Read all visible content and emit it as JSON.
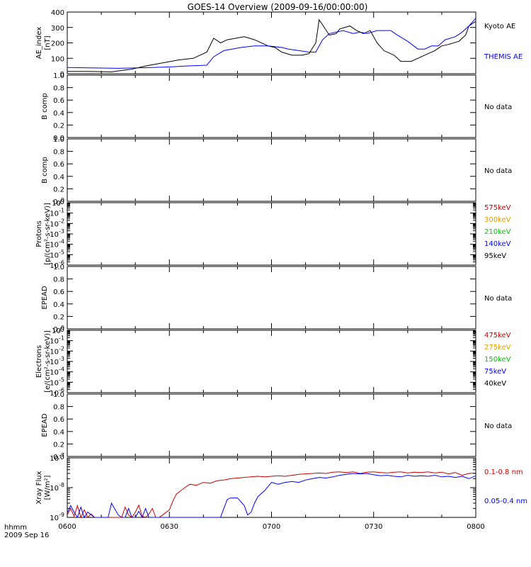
{
  "title": "GOES-14 Overview (2009-09-16/00:00:00)",
  "time_axis": {
    "tick_labels": [
      "0600",
      "0630",
      "0700",
      "0730",
      "0800"
    ],
    "tick_minutes": [
      0,
      30,
      60,
      90,
      120
    ],
    "range_minutes": [
      0,
      120
    ],
    "row1_label": "hhmm",
    "row2_label": "2009 Sep 16"
  },
  "colors": {
    "kyoto": "#000000",
    "themis": "#0000ff",
    "red": "#cc0000",
    "orange": "#e0a000",
    "green": "#00cc00",
    "blue": "#0000ff",
    "black": "#000000"
  },
  "chart_data": [
    {
      "type": "line",
      "panel": "ae",
      "ylabel": [
        "AE_index",
        "[nT]"
      ],
      "ylim": [
        0,
        400
      ],
      "yticks": [
        0,
        100,
        200,
        300,
        400
      ],
      "series": [
        {
          "name": "Kyoto AE",
          "color": "#000000",
          "x": [
            0,
            6,
            13,
            19,
            23,
            28,
            33,
            37,
            41,
            43,
            45,
            47,
            52,
            55,
            59,
            61,
            63,
            66,
            69,
            71,
            73,
            74,
            77,
            79,
            80,
            83,
            85,
            87,
            89,
            91,
            93,
            96,
            98,
            101,
            104,
            106,
            108,
            110,
            112,
            115,
            117,
            118,
            120
          ],
          "y": [
            15,
            15,
            12,
            30,
            50,
            70,
            90,
            100,
            140,
            230,
            200,
            220,
            240,
            220,
            180,
            170,
            140,
            120,
            120,
            130,
            200,
            350,
            250,
            260,
            290,
            310,
            280,
            260,
            280,
            200,
            150,
            120,
            80,
            80,
            110,
            130,
            150,
            180,
            190,
            210,
            250,
            310,
            340
          ]
        },
        {
          "name": "THEMIS AE",
          "color": "#0000ff",
          "x": [
            0,
            15,
            25,
            31,
            35,
            41,
            43,
            46,
            51,
            55,
            59,
            63,
            65,
            68,
            71,
            73,
            75,
            77,
            81,
            84,
            86,
            88,
            91,
            95,
            97,
            100,
            103,
            105,
            107,
            109,
            111,
            114,
            116,
            118,
            120
          ],
          "y": [
            40,
            35,
            40,
            45,
            50,
            55,
            110,
            150,
            170,
            180,
            180,
            170,
            160,
            150,
            140,
            140,
            220,
            260,
            280,
            260,
            270,
            260,
            280,
            280,
            250,
            210,
            160,
            160,
            180,
            180,
            220,
            240,
            270,
            310,
            360
          ]
        }
      ]
    },
    {
      "type": "line",
      "panel": "bcomp1",
      "ylabel": [
        "B comp"
      ],
      "ylim": [
        0,
        1
      ],
      "yticks": [
        0,
        0.2,
        0.4,
        0.6,
        0.8,
        1.0
      ],
      "ytick_labels": [
        "0.0",
        "0.2",
        "0.4",
        "0.6",
        "0.8",
        "1.0"
      ],
      "status": "No data",
      "series": []
    },
    {
      "type": "line",
      "panel": "bcomp2",
      "ylabel": [
        "B comp"
      ],
      "ylim": [
        0,
        1
      ],
      "yticks": [
        0,
        0.2,
        0.4,
        0.6,
        0.8,
        1.0
      ],
      "ytick_labels": [
        "0.0",
        "0.2",
        "0.4",
        "0.6",
        "0.8",
        "1.0"
      ],
      "status": "No data",
      "series": []
    },
    {
      "type": "line",
      "panel": "protons",
      "yscale": "log",
      "ylabel": [
        "Protons",
        "[p/(cm²-s-sr-keV)]"
      ],
      "ylim": [
        1e-06,
        1
      ],
      "ytick_exponents": [
        0,
        -1,
        -2,
        -3,
        -4,
        -5,
        -6
      ],
      "legend": [
        {
          "label": "575keV",
          "color": "#cc0000"
        },
        {
          "label": "300keV",
          "color": "#e0a000"
        },
        {
          "label": "210keV",
          "color": "#00cc00"
        },
        {
          "label": "140keV",
          "color": "#0000ff"
        },
        {
          "label": "95keV",
          "color": "#000000"
        }
      ],
      "series": []
    },
    {
      "type": "line",
      "panel": "epead1",
      "ylabel": [
        "EPEAD"
      ],
      "ylim": [
        0,
        1
      ],
      "yticks": [
        0,
        0.2,
        0.4,
        0.6,
        0.8,
        1.0
      ],
      "ytick_labels": [
        "0.0",
        "0.2",
        "0.4",
        "0.6",
        "0.8",
        "1.0"
      ],
      "status": "No data",
      "series": []
    },
    {
      "type": "line",
      "panel": "electrons",
      "yscale": "log",
      "ylabel": [
        "Electrons",
        "[e/(cm²-s-sr-keV)]"
      ],
      "ylim": [
        1e-06,
        1
      ],
      "ytick_exponents": [
        0,
        -1,
        -2,
        -3,
        -4,
        -5,
        -6
      ],
      "legend": [
        {
          "label": "475keV",
          "color": "#cc0000"
        },
        {
          "label": "275keV",
          "color": "#e0a000"
        },
        {
          "label": "150keV",
          "color": "#00cc00"
        },
        {
          "label": "75keV",
          "color": "#0000ff"
        },
        {
          "label": "40keV",
          "color": "#000000"
        }
      ],
      "series": []
    },
    {
      "type": "line",
      "panel": "epead2",
      "ylabel": [
        "EPEAD"
      ],
      "ylim": [
        0,
        1
      ],
      "yticks": [
        0,
        0.2,
        0.4,
        0.6,
        0.8,
        1.0
      ],
      "ytick_labels": [
        "0.0",
        "0.2",
        "0.4",
        "0.6",
        "0.8",
        "1.0"
      ],
      "status": "No data",
      "series": []
    },
    {
      "type": "line",
      "panel": "xray",
      "yscale": "log",
      "ylabel": [
        "Xray Flux",
        "[W/m²]"
      ],
      "ylim": [
        1e-09,
        1e-07
      ],
      "ytick_exponents": [
        -7,
        -8,
        -9
      ],
      "series": [
        {
          "name": "0.1-0.8 nm",
          "color": "#cc0000",
          "x": [
            0,
            1,
            2,
            3,
            4,
            5,
            6,
            7,
            8,
            10,
            11,
            13,
            14,
            16,
            17,
            18,
            19,
            20,
            21,
            22,
            23,
            24,
            25,
            26,
            27,
            28,
            30,
            31,
            32,
            34,
            36,
            38,
            40,
            42,
            44,
            46,
            48,
            50,
            52,
            54,
            56,
            58,
            60,
            62,
            64,
            66,
            68,
            70,
            72,
            74,
            76,
            78,
            80,
            82,
            84,
            86,
            88,
            90,
            92,
            94,
            96,
            98,
            100,
            102,
            104,
            106,
            108,
            110,
            112,
            114,
            116,
            118,
            120
          ],
          "y": [
            1.2e-09,
            2e-09,
            1.1e-09,
            2.5e-09,
            1e-09,
            1.8e-09,
            1e-09,
            1.3e-09,
            1e-09,
            1e-09,
            1e-09,
            1e-09,
            1e-09,
            1e-09,
            2.2e-09,
            1.2e-09,
            1e-09,
            1.5e-09,
            2.6e-09,
            1.1e-09,
            1e-09,
            1.3e-09,
            2e-09,
            1e-09,
            1e-09,
            1.2e-09,
            1.8e-09,
            3.5e-09,
            6e-09,
            9e-09,
            1.3e-08,
            1.2e-08,
            1.5e-08,
            1.4e-08,
            1.7e-08,
            1.8e-08,
            2e-08,
            2.1e-08,
            2.2e-08,
            2.3e-08,
            2.4e-08,
            2.3e-08,
            2.4e-08,
            2.5e-08,
            2.4e-08,
            2.6e-08,
            2.8e-08,
            2.9e-08,
            3e-08,
            3.1e-08,
            3e-08,
            3.3e-08,
            3.4e-08,
            3.2e-08,
            3.4e-08,
            3e-08,
            3.3e-08,
            3.4e-08,
            3.2e-08,
            3.1e-08,
            3.3e-08,
            3.4e-08,
            3.1e-08,
            3.3e-08,
            3.2e-08,
            3.4e-08,
            3.1e-08,
            3.3e-08,
            2.9e-08,
            3.2e-08,
            2.6e-08,
            3e-08,
            3.1e-08
          ]
        },
        {
          "name": "0.05-0.4 nm",
          "color": "#0000ff",
          "x": [
            0,
            1,
            2,
            3,
            4,
            5,
            6,
            8,
            10,
            12,
            13,
            15,
            16,
            17,
            18,
            19,
            20,
            21,
            22,
            23,
            24,
            25,
            26,
            27,
            28,
            29,
            30,
            32,
            35,
            38,
            40,
            42,
            44,
            45,
            46,
            47,
            48,
            50,
            52,
            53,
            54,
            55,
            56,
            58,
            60,
            62,
            64,
            66,
            68,
            70,
            72,
            74,
            76,
            78,
            80,
            82,
            84,
            86,
            88,
            90,
            92,
            94,
            96,
            98,
            100,
            102,
            104,
            106,
            108,
            110,
            112,
            114,
            116,
            118,
            120
          ],
          "y": [
            1.4e-09,
            2.5e-09,
            1.5e-09,
            1e-09,
            2.2e-09,
            1e-09,
            1.5e-09,
            1e-09,
            1e-09,
            1e-09,
            3e-09,
            1.2e-09,
            1e-09,
            1e-09,
            2e-09,
            1e-09,
            1e-09,
            1.6e-09,
            1e-09,
            2e-09,
            1e-09,
            1e-09,
            1e-09,
            1e-09,
            1e-09,
            1e-09,
            1e-09,
            1e-09,
            1e-09,
            1e-09,
            1e-09,
            1e-09,
            1e-09,
            1e-09,
            2e-09,
            4e-09,
            4.5e-09,
            4.5e-09,
            2.5e-09,
            1.2e-09,
            1.5e-09,
            3e-09,
            5e-09,
            8e-09,
            1.5e-08,
            1.3e-08,
            1.5e-08,
            1.6e-08,
            1.5e-08,
            1.8e-08,
            2e-08,
            2.2e-08,
            2.1e-08,
            2.3e-08,
            2.6e-08,
            2.8e-08,
            3e-08,
            2.9e-08,
            3e-08,
            2.7e-08,
            2.5e-08,
            2.6e-08,
            2.4e-08,
            2.3e-08,
            2.6e-08,
            2.4e-08,
            2.5e-08,
            2.4e-08,
            2.6e-08,
            2.3e-08,
            2.4e-08,
            2.2e-08,
            2.4e-08,
            2e-08,
            2.5e-08
          ]
        }
      ]
    }
  ]
}
